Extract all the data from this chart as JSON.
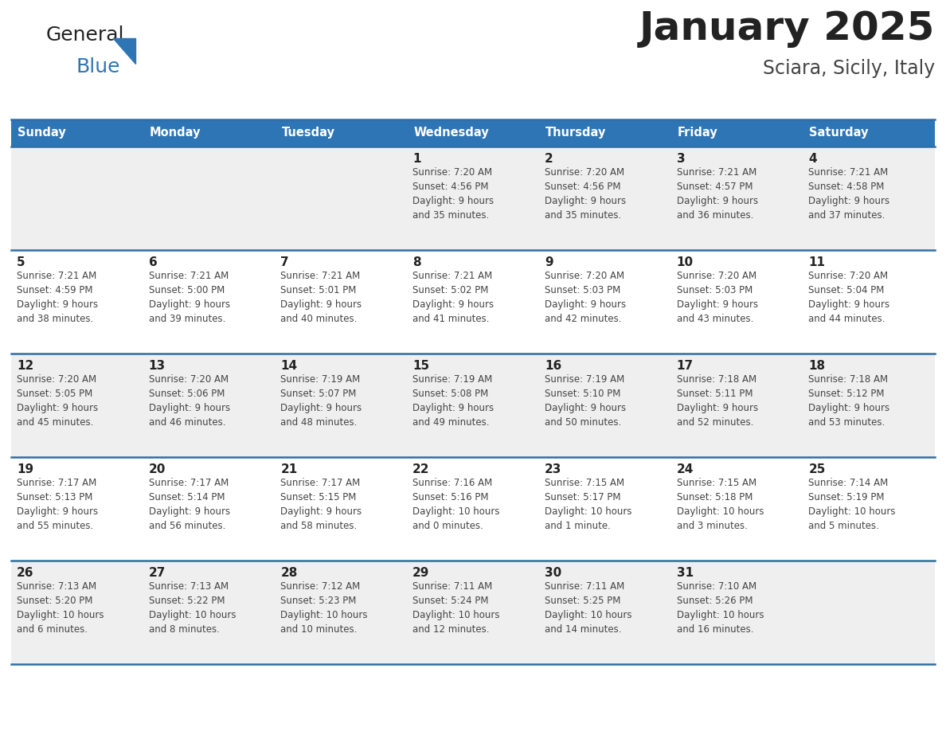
{
  "title": "January 2025",
  "subtitle": "Sciara, Sicily, Italy",
  "header_color": "#2E75B6",
  "header_text_color": "#FFFFFF",
  "day_names": [
    "Sunday",
    "Monday",
    "Tuesday",
    "Wednesday",
    "Thursday",
    "Friday",
    "Saturday"
  ],
  "cell_bg_even": "#EFEFEF",
  "cell_bg_odd": "#FFFFFF",
  "grid_line_color": "#2E6EA6",
  "title_color": "#222222",
  "subtitle_color": "#444444",
  "day_num_color": "#222222",
  "day_text_color": "#444444",
  "logo_general_color": "#222222",
  "logo_blue_color": "#2E75B6",
  "logo_triangle_color": "#2E75B6",
  "calendar": [
    [
      {
        "day": null,
        "sunrise": null,
        "sunset": null,
        "daylight": null
      },
      {
        "day": null,
        "sunrise": null,
        "sunset": null,
        "daylight": null
      },
      {
        "day": null,
        "sunrise": null,
        "sunset": null,
        "daylight": null
      },
      {
        "day": 1,
        "sunrise": "7:20 AM",
        "sunset": "4:56 PM",
        "daylight": "9 hours\nand 35 minutes."
      },
      {
        "day": 2,
        "sunrise": "7:20 AM",
        "sunset": "4:56 PM",
        "daylight": "9 hours\nand 35 minutes."
      },
      {
        "day": 3,
        "sunrise": "7:21 AM",
        "sunset": "4:57 PM",
        "daylight": "9 hours\nand 36 minutes."
      },
      {
        "day": 4,
        "sunrise": "7:21 AM",
        "sunset": "4:58 PM",
        "daylight": "9 hours\nand 37 minutes."
      }
    ],
    [
      {
        "day": 5,
        "sunrise": "7:21 AM",
        "sunset": "4:59 PM",
        "daylight": "9 hours\nand 38 minutes."
      },
      {
        "day": 6,
        "sunrise": "7:21 AM",
        "sunset": "5:00 PM",
        "daylight": "9 hours\nand 39 minutes."
      },
      {
        "day": 7,
        "sunrise": "7:21 AM",
        "sunset": "5:01 PM",
        "daylight": "9 hours\nand 40 minutes."
      },
      {
        "day": 8,
        "sunrise": "7:21 AM",
        "sunset": "5:02 PM",
        "daylight": "9 hours\nand 41 minutes."
      },
      {
        "day": 9,
        "sunrise": "7:20 AM",
        "sunset": "5:03 PM",
        "daylight": "9 hours\nand 42 minutes."
      },
      {
        "day": 10,
        "sunrise": "7:20 AM",
        "sunset": "5:03 PM",
        "daylight": "9 hours\nand 43 minutes."
      },
      {
        "day": 11,
        "sunrise": "7:20 AM",
        "sunset": "5:04 PM",
        "daylight": "9 hours\nand 44 minutes."
      }
    ],
    [
      {
        "day": 12,
        "sunrise": "7:20 AM",
        "sunset": "5:05 PM",
        "daylight": "9 hours\nand 45 minutes."
      },
      {
        "day": 13,
        "sunrise": "7:20 AM",
        "sunset": "5:06 PM",
        "daylight": "9 hours\nand 46 minutes."
      },
      {
        "day": 14,
        "sunrise": "7:19 AM",
        "sunset": "5:07 PM",
        "daylight": "9 hours\nand 48 minutes."
      },
      {
        "day": 15,
        "sunrise": "7:19 AM",
        "sunset": "5:08 PM",
        "daylight": "9 hours\nand 49 minutes."
      },
      {
        "day": 16,
        "sunrise": "7:19 AM",
        "sunset": "5:10 PM",
        "daylight": "9 hours\nand 50 minutes."
      },
      {
        "day": 17,
        "sunrise": "7:18 AM",
        "sunset": "5:11 PM",
        "daylight": "9 hours\nand 52 minutes."
      },
      {
        "day": 18,
        "sunrise": "7:18 AM",
        "sunset": "5:12 PM",
        "daylight": "9 hours\nand 53 minutes."
      }
    ],
    [
      {
        "day": 19,
        "sunrise": "7:17 AM",
        "sunset": "5:13 PM",
        "daylight": "9 hours\nand 55 minutes."
      },
      {
        "day": 20,
        "sunrise": "7:17 AM",
        "sunset": "5:14 PM",
        "daylight": "9 hours\nand 56 minutes."
      },
      {
        "day": 21,
        "sunrise": "7:17 AM",
        "sunset": "5:15 PM",
        "daylight": "9 hours\nand 58 minutes."
      },
      {
        "day": 22,
        "sunrise": "7:16 AM",
        "sunset": "5:16 PM",
        "daylight": "10 hours\nand 0 minutes."
      },
      {
        "day": 23,
        "sunrise": "7:15 AM",
        "sunset": "5:17 PM",
        "daylight": "10 hours\nand 1 minute."
      },
      {
        "day": 24,
        "sunrise": "7:15 AM",
        "sunset": "5:18 PM",
        "daylight": "10 hours\nand 3 minutes."
      },
      {
        "day": 25,
        "sunrise": "7:14 AM",
        "sunset": "5:19 PM",
        "daylight": "10 hours\nand 5 minutes."
      }
    ],
    [
      {
        "day": 26,
        "sunrise": "7:13 AM",
        "sunset": "5:20 PM",
        "daylight": "10 hours\nand 6 minutes."
      },
      {
        "day": 27,
        "sunrise": "7:13 AM",
        "sunset": "5:22 PM",
        "daylight": "10 hours\nand 8 minutes."
      },
      {
        "day": 28,
        "sunrise": "7:12 AM",
        "sunset": "5:23 PM",
        "daylight": "10 hours\nand 10 minutes."
      },
      {
        "day": 29,
        "sunrise": "7:11 AM",
        "sunset": "5:24 PM",
        "daylight": "10 hours\nand 12 minutes."
      },
      {
        "day": 30,
        "sunrise": "7:11 AM",
        "sunset": "5:25 PM",
        "daylight": "10 hours\nand 14 minutes."
      },
      {
        "day": 31,
        "sunrise": "7:10 AM",
        "sunset": "5:26 PM",
        "daylight": "10 hours\nand 16 minutes."
      },
      {
        "day": null,
        "sunrise": null,
        "sunset": null,
        "daylight": null
      }
    ]
  ]
}
